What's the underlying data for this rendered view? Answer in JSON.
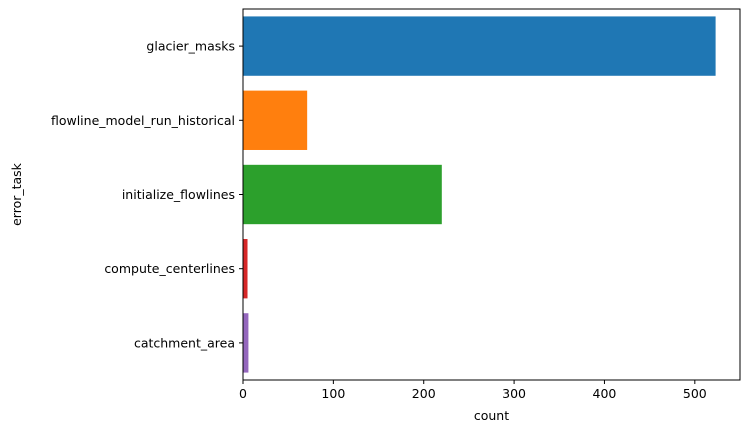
{
  "chart_data": {
    "type": "bar",
    "orientation": "horizontal",
    "categories": [
      "glacier_masks",
      "flowline_model_run_historical",
      "initialize_flowlines",
      "compute_centerlines",
      "catchment_area"
    ],
    "values": [
      523,
      71,
      220,
      5,
      6
    ],
    "colors": [
      "#1f77b4",
      "#ff7f0e",
      "#2ca02c",
      "#d62728",
      "#9467bd"
    ],
    "title": "",
    "xlabel": "count",
    "ylabel": "error_task",
    "xlim": [
      0,
      550
    ],
    "xticks": [
      0,
      100,
      200,
      300,
      400,
      500
    ],
    "grid": false,
    "legend": "none"
  }
}
